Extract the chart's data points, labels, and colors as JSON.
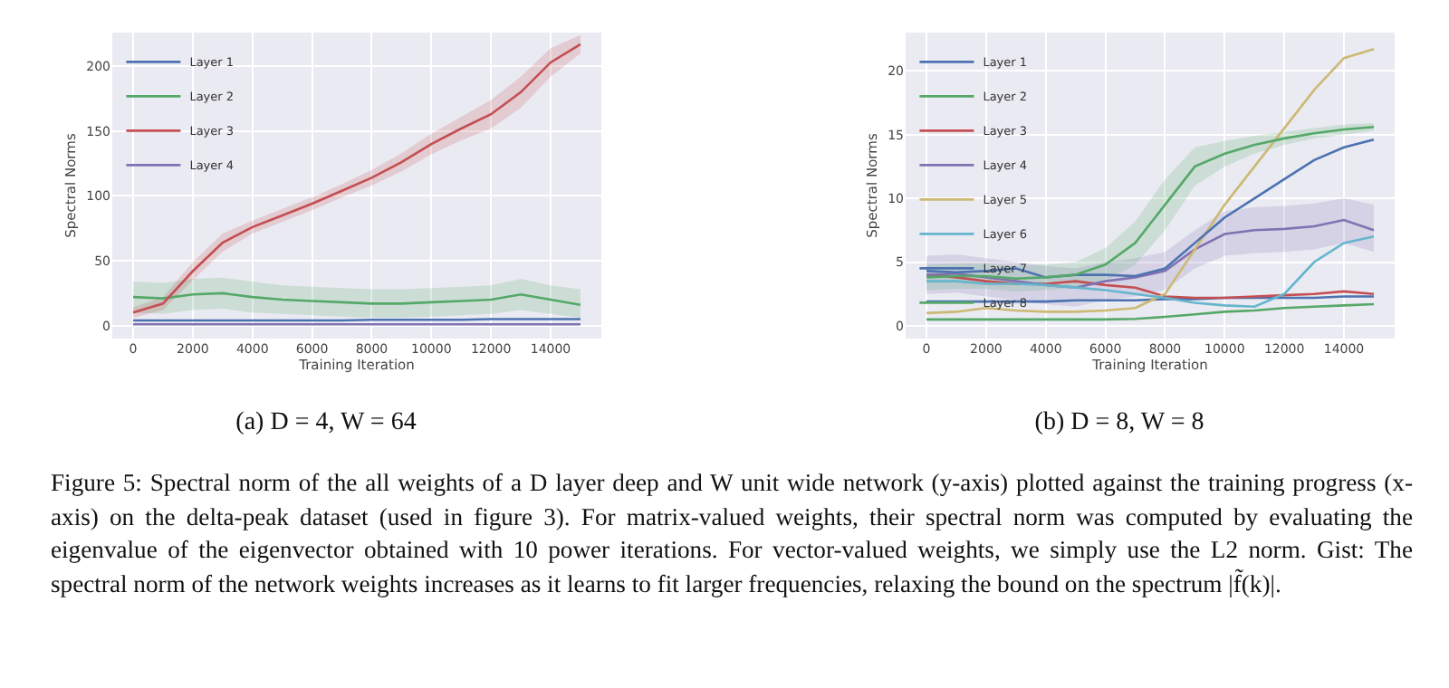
{
  "chart_data": [
    {
      "type": "line",
      "subtitle": "(a) D = 4, W = 64",
      "xlabel": "Training Iteration",
      "ylabel": "Spectral Norms",
      "x": [
        0,
        1000,
        2000,
        3000,
        4000,
        5000,
        6000,
        7000,
        8000,
        9000,
        10000,
        11000,
        12000,
        13000,
        14000,
        15000
      ],
      "xlim": [
        -700,
        15700
      ],
      "xticks": [
        0,
        2000,
        4000,
        6000,
        8000,
        10000,
        12000,
        14000
      ],
      "ylim": [
        -10,
        226
      ],
      "yticks": [
        0,
        50,
        100,
        150,
        200
      ],
      "grid": true,
      "legend": "top left",
      "series": [
        {
          "name": "Layer 1",
          "color": "#4c72b0",
          "values": [
            4,
            4,
            4,
            4,
            4,
            4,
            4,
            4,
            4.5,
            4.5,
            4.5,
            4.5,
            5,
            5,
            5,
            5
          ]
        },
        {
          "name": "Layer 2",
          "color": "#55a868",
          "values": [
            22,
            21,
            24,
            25,
            22,
            20,
            19,
            18,
            17,
            17,
            18,
            19,
            20,
            24,
            20,
            16
          ],
          "lower": [
            10,
            9,
            12,
            13,
            10,
            9,
            8,
            7,
            6,
            6,
            7,
            8,
            9,
            12,
            9,
            6
          ],
          "upper": [
            34,
            33,
            36,
            37,
            34,
            31,
            30,
            29,
            28,
            28,
            29,
            30,
            31,
            36,
            31,
            28
          ]
        },
        {
          "name": "Layer 3",
          "color": "#c44e52",
          "values": [
            10,
            17,
            42,
            64,
            76,
            85,
            94,
            104,
            114,
            126,
            140,
            152,
            163,
            180,
            203,
            217
          ],
          "lower": [
            6,
            12,
            35,
            57,
            71,
            80,
            89,
            99,
            108,
            119,
            132,
            143,
            152,
            168,
            192,
            210
          ],
          "upper": [
            14,
            22,
            49,
            71,
            81,
            90,
            99,
            109,
            120,
            133,
            148,
            161,
            174,
            192,
            214,
            224
          ]
        },
        {
          "name": "Layer 4",
          "color": "#8172b2",
          "values": [
            1,
            1,
            1,
            1,
            1,
            1,
            1,
            1,
            1,
            1,
            1,
            1,
            1,
            1,
            1,
            1
          ]
        }
      ]
    },
    {
      "type": "line",
      "subtitle": "(b) D = 8, W = 8",
      "xlabel": "Training Iteration",
      "ylabel": "Spectral Norms",
      "x": [
        0,
        1000,
        2000,
        3000,
        4000,
        5000,
        6000,
        7000,
        8000,
        9000,
        10000,
        11000,
        12000,
        13000,
        14000,
        15000
      ],
      "xlim": [
        -700,
        15700
      ],
      "xticks": [
        0,
        2000,
        4000,
        6000,
        8000,
        10000,
        12000,
        14000
      ],
      "ylim": [
        -1,
        23
      ],
      "yticks": [
        0,
        5,
        10,
        15,
        20
      ],
      "grid": true,
      "legend": "top left",
      "annotations": [
        "Figure 5: Spectral norm of the all weights of a D layer deep and W unit wide network (y-axis) plotted against the training progress (x-axis) on the delta-peak dataset (used in figure 3). For matrix-valued weights, their spectral norm was computed by evaluating the eigenvalue of the eigenvector obtained with 10 power iterations. For vector-valued weights, we simply use the L2 norm. Gist: The spectral norm of the network weights increases as it learns to fit larger frequencies, relaxing the bound on the spectrum |f̃(k)|."
      ],
      "series": [
        {
          "name": "Layer 1",
          "color": "#4c72b0",
          "values": [
            1.9,
            1.9,
            1.9,
            1.9,
            1.9,
            2,
            2,
            2,
            2.1,
            2.1,
            2.2,
            2.2,
            2.2,
            2.2,
            2.3,
            2.3
          ]
        },
        {
          "name": "Layer 2",
          "color": "#55a868",
          "values": [
            0.5,
            0.5,
            0.5,
            0.5,
            0.5,
            0.5,
            0.5,
            0.55,
            0.7,
            0.9,
            1.1,
            1.2,
            1.4,
            1.5,
            1.6,
            1.7
          ]
        },
        {
          "name": "Layer 3",
          "color": "#c44e52",
          "values": [
            4,
            3.8,
            3.5,
            3.3,
            3.3,
            3.5,
            3.2,
            3,
            2.3,
            2.2,
            2.2,
            2.3,
            2.4,
            2.5,
            2.7,
            2.5
          ]
        },
        {
          "name": "Layer 4",
          "color": "#8172b2",
          "values": [
            4,
            4.1,
            3.8,
            3.5,
            3.2,
            3,
            3.5,
            3.8,
            4.3,
            6,
            7.2,
            7.5,
            7.6,
            7.8,
            8.3,
            7.5
          ],
          "lower": [
            2.5,
            2.6,
            2.3,
            2,
            1.7,
            1.5,
            2,
            2.3,
            2.8,
            4.5,
            5.5,
            5.7,
            5.8,
            6,
            6.5,
            5.8
          ],
          "upper": [
            5.5,
            5.6,
            5.3,
            5,
            4.7,
            4.5,
            5,
            5.3,
            5.8,
            7.5,
            9,
            9.3,
            9.4,
            9.6,
            10,
            9.5
          ]
        },
        {
          "name": "Layer 5",
          "color": "#ccb974",
          "values": [
            1,
            1.1,
            1.4,
            1.2,
            1.1,
            1.1,
            1.2,
            1.4,
            2.5,
            6,
            9.5,
            12.5,
            15.5,
            18.5,
            21,
            21.7
          ]
        },
        {
          "name": "Layer 6",
          "color": "#64b5cd",
          "values": [
            3.5,
            3.5,
            3.3,
            3.3,
            3.2,
            3,
            2.8,
            2.5,
            2.2,
            1.8,
            1.6,
            1.5,
            2.5,
            5,
            6.5,
            7
          ]
        },
        {
          "name": "Layer 7",
          "color": "#4c72b0",
          "values": [
            4.3,
            4.2,
            4.3,
            4.5,
            3.8,
            4,
            4,
            3.9,
            4.5,
            6.5,
            8.5,
            10,
            11.5,
            13,
            14,
            14.6
          ]
        },
        {
          "name": "Layer 8",
          "color": "#55a868",
          "values": [
            3.8,
            3.9,
            3.9,
            3.7,
            3.8,
            4,
            4.8,
            6.5,
            9.5,
            12.5,
            13.5,
            14.2,
            14.7,
            15.1,
            15.4,
            15.6
          ],
          "lower": [
            2.8,
            2.9,
            2.9,
            2.7,
            2.8,
            3,
            3.5,
            4.8,
            7.5,
            11,
            12.5,
            13.5,
            14.2,
            14.7,
            15,
            15.3
          ],
          "upper": [
            4.8,
            4.9,
            4.9,
            4.7,
            4.8,
            5,
            6.1,
            8.2,
            11.5,
            14,
            14.5,
            14.9,
            15.2,
            15.5,
            15.8,
            15.9
          ]
        }
      ]
    }
  ]
}
